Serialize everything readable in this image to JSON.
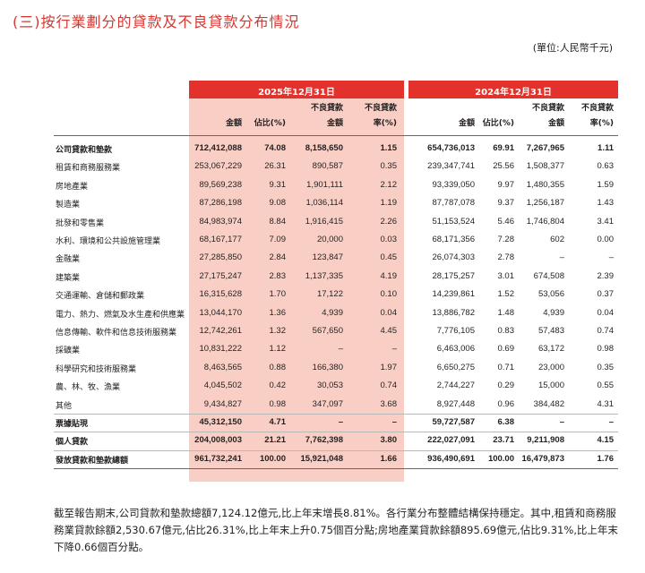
{
  "title": "(三)按行業劃分的貸款及不良貸款分布情況",
  "unit": "(單位:人民幣千元)",
  "periods": [
    "2025年12月31日",
    "2024年12月31日"
  ],
  "columns": [
    {
      "l1": "",
      "l2": "金額"
    },
    {
      "l1": "",
      "l2": "佔比(%)"
    },
    {
      "l1": "不良貸款",
      "l2": "金額"
    },
    {
      "l1": "不良貸款",
      "l2": "率(%)"
    },
    {
      "l1": "",
      "l2": "金額"
    },
    {
      "l1": "",
      "l2": "佔比(%)"
    },
    {
      "l1": "不良貸款",
      "l2": "金額"
    },
    {
      "l1": "不良貸款",
      "l2": "率(%)"
    }
  ],
  "rows": [
    {
      "label": "公司貸款和墊款",
      "bold": true,
      "v": [
        "712,412,088",
        "74.08",
        "8,158,650",
        "1.15",
        "654,736,013",
        "69.91",
        "7,267,965",
        "1.11"
      ]
    },
    {
      "label": "租賃和商務服務業",
      "bold": false,
      "v": [
        "253,067,229",
        "26.31",
        "890,587",
        "0.35",
        "239,347,741",
        "25.56",
        "1,508,377",
        "0.63"
      ]
    },
    {
      "label": "房地產業",
      "bold": false,
      "v": [
        "89,569,238",
        "9.31",
        "1,901,111",
        "2.12",
        "93,339,050",
        "9.97",
        "1,480,355",
        "1.59"
      ]
    },
    {
      "label": "製造業",
      "bold": false,
      "v": [
        "87,286,198",
        "9.08",
        "1,036,114",
        "1.19",
        "87,787,078",
        "9.37",
        "1,256,187",
        "1.43"
      ]
    },
    {
      "label": "批發和零售業",
      "bold": false,
      "v": [
        "84,983,974",
        "8.84",
        "1,916,415",
        "2.26",
        "51,153,524",
        "5.46",
        "1,746,804",
        "3.41"
      ]
    },
    {
      "label": "水利、環境和公共設施管理業",
      "bold": false,
      "v": [
        "68,167,177",
        "7.09",
        "20,000",
        "0.03",
        "68,171,356",
        "7.28",
        "602",
        "0.00"
      ]
    },
    {
      "label": "金融業",
      "bold": false,
      "v": [
        "27,285,850",
        "2.84",
        "123,847",
        "0.45",
        "26,074,303",
        "2.78",
        "–",
        "–"
      ]
    },
    {
      "label": "建築業",
      "bold": false,
      "v": [
        "27,175,247",
        "2.83",
        "1,137,335",
        "4.19",
        "28,175,257",
        "3.01",
        "674,508",
        "2.39"
      ]
    },
    {
      "label": "交通運輸、倉儲和郵政業",
      "bold": false,
      "v": [
        "16,315,628",
        "1.70",
        "17,122",
        "0.10",
        "14,239,861",
        "1.52",
        "53,056",
        "0.37"
      ]
    },
    {
      "label": "電力、熱力、燃氣及水生產和供應業",
      "bold": false,
      "v": [
        "13,044,170",
        "1.36",
        "4,939",
        "0.04",
        "13,886,782",
        "1.48",
        "4,939",
        "0.04"
      ]
    },
    {
      "label": "信息傳輸、軟件和信息技術服務業",
      "bold": false,
      "v": [
        "12,742,261",
        "1.32",
        "567,650",
        "4.45",
        "7,776,105",
        "0.83",
        "57,483",
        "0.74"
      ]
    },
    {
      "label": "採礦業",
      "bold": false,
      "v": [
        "10,831,222",
        "1.12",
        "–",
        "–",
        "6,463,006",
        "0.69",
        "63,172",
        "0.98"
      ]
    },
    {
      "label": "科學研究和技術服務業",
      "bold": false,
      "v": [
        "8,463,565",
        "0.88",
        "166,380",
        "1.97",
        "6,650,275",
        "0.71",
        "23,000",
        "0.35"
      ]
    },
    {
      "label": "農、林、牧、漁業",
      "bold": false,
      "v": [
        "4,045,502",
        "0.42",
        "30,053",
        "0.74",
        "2,744,227",
        "0.29",
        "15,000",
        "0.55"
      ]
    },
    {
      "label": "其他",
      "bold": false,
      "v": [
        "9,434,827",
        "0.98",
        "347,097",
        "3.68",
        "8,927,448",
        "0.96",
        "384,482",
        "4.31"
      ]
    },
    {
      "label": "票據貼現",
      "bold": true,
      "v": [
        "45,312,150",
        "4.71",
        "–",
        "–",
        "59,727,587",
        "6.38",
        "–",
        "–"
      ]
    },
    {
      "label": "個人貸款",
      "bold": true,
      "v": [
        "204,008,003",
        "21.21",
        "7,762,398",
        "3.80",
        "222,027,091",
        "23.71",
        "9,211,908",
        "4.15"
      ]
    },
    {
      "label": "發放貸款和墊款總額",
      "bold": true,
      "v": [
        "961,732,241",
        "100.00",
        "15,921,048",
        "1.66",
        "936,490,691",
        "100.00",
        "16,479,873",
        "1.76"
      ]
    }
  ],
  "paragraph": "截至報告期末,公司貸款和墊款總額7,124.12億元,比上年末增長8.81%。各行業分布整體結構保持穩定。其中,租賃和商務服務業貸款餘額2,530.67億元,佔比26.31%,比上年末上升0.75個百分點;房地產業貸款餘額895.69億元,佔比9.31%,比上年末下降0.66個百分點。"
}
